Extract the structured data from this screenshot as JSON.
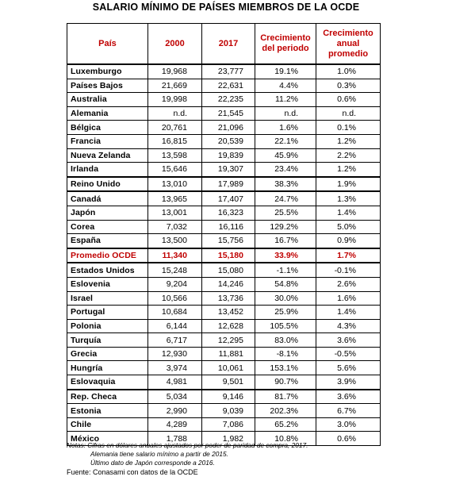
{
  "title": "SALARIO MÍNIMO  DE PAÍSES MIEMBROS DE LA OCDE",
  "colors": {
    "header_text": "#c00000",
    "highlight_text": "#c00000"
  },
  "chart_data": {
    "type": "table",
    "title": "SALARIO MÍNIMO  DE PAÍSES MIEMBROS DE LA OCDE",
    "columns": [
      "País",
      "2000",
      "2017",
      "Crecimiento del periodo",
      "Crecimiento anual promedio"
    ],
    "rows": [
      {
        "pais": "Luxemburgo",
        "y2000": "19,968",
        "y2017": "23,777",
        "crec": "19.1%",
        "anual": "1.0%"
      },
      {
        "pais": "Países Bajos",
        "y2000": "21,669",
        "y2017": "22,631",
        "crec": "4.4%",
        "anual": "0.3%"
      },
      {
        "pais": "Australia",
        "y2000": "19,998",
        "y2017": "22,235",
        "crec": "11.2%",
        "anual": "0.6%"
      },
      {
        "pais": "Alemania",
        "y2000": "n.d.",
        "y2017": "21,545",
        "crec": "n.d.",
        "anual": "n.d."
      },
      {
        "pais": "Bélgica",
        "y2000": "20,761",
        "y2017": "21,096",
        "crec": "1.6%",
        "anual": "0.1%"
      },
      {
        "pais": "Francia",
        "y2000": "16,815",
        "y2017": "20,539",
        "crec": "22.1%",
        "anual": "1.2%"
      },
      {
        "pais": "Nueva Zelanda",
        "y2000": "13,598",
        "y2017": "19,839",
        "crec": "45.9%",
        "anual": "2.2%"
      },
      {
        "pais": "Irlanda",
        "y2000": "15,646",
        "y2017": "19,307",
        "crec": "23.4%",
        "anual": "1.2%"
      },
      {
        "pais": "Reino Unido",
        "y2000": "13,010",
        "y2017": "17,989",
        "crec": "38.3%",
        "anual": "1.9%"
      },
      {
        "pais": "Canadá",
        "y2000": "13,965",
        "y2017": "17,407",
        "crec": "24.7%",
        "anual": "1.3%"
      },
      {
        "pais": "Japón",
        "y2000": "13,001",
        "y2017": "16,323",
        "crec": "25.5%",
        "anual": "1.4%"
      },
      {
        "pais": "Corea",
        "y2000": "7,032",
        "y2017": "16,116",
        "crec": "129.2%",
        "anual": "5.0%"
      },
      {
        "pais": "España",
        "y2000": "13,500",
        "y2017": "15,756",
        "crec": "16.7%",
        "anual": "0.9%"
      },
      {
        "pais": "Promedio OCDE",
        "y2000": "11,340",
        "y2017": "15,180",
        "crec": "33.9%",
        "anual": "1.7%",
        "highlight": true
      },
      {
        "pais": "Estados Unidos",
        "y2000": "15,248",
        "y2017": "15,080",
        "crec": "-1.1%",
        "anual": "-0.1%"
      },
      {
        "pais": "Eslovenia",
        "y2000": "9,204",
        "y2017": "14,246",
        "crec": "54.8%",
        "anual": "2.6%"
      },
      {
        "pais": "Israel",
        "y2000": "10,566",
        "y2017": "13,736",
        "crec": "30.0%",
        "anual": "1.6%"
      },
      {
        "pais": "Portugal",
        "y2000": "10,684",
        "y2017": "13,452",
        "crec": "25.9%",
        "anual": "1.4%"
      },
      {
        "pais": "Polonia",
        "y2000": "6,144",
        "y2017": "12,628",
        "crec": "105.5%",
        "anual": "4.3%"
      },
      {
        "pais": "Turquía",
        "y2000": "6,717",
        "y2017": "12,295",
        "crec": "83.0%",
        "anual": "3.6%"
      },
      {
        "pais": "Grecia",
        "y2000": "12,930",
        "y2017": "11,881",
        "crec": "-8.1%",
        "anual": "-0.5%"
      },
      {
        "pais": "Hungría",
        "y2000": "3,974",
        "y2017": "10,061",
        "crec": "153.1%",
        "anual": "5.6%"
      },
      {
        "pais": "Eslovaquia",
        "y2000": "4,981",
        "y2017": "9,501",
        "crec": "90.7%",
        "anual": "3.9%"
      },
      {
        "pais": "Rep. Checa",
        "y2000": "5,034",
        "y2017": "9,146",
        "crec": "81.7%",
        "anual": "3.6%"
      },
      {
        "pais": "Estonia",
        "y2000": "2,990",
        "y2017": "9,039",
        "crec": "202.3%",
        "anual": "6.7%"
      },
      {
        "pais": "Chile",
        "y2000": "4,289",
        "y2017": "7,086",
        "crec": "65.2%",
        "anual": "3.0%"
      },
      {
        "pais": "México",
        "y2000": "1,788",
        "y2017": "1,982",
        "crec": "10.8%",
        "anual": "0.6%"
      }
    ],
    "thick_borders_after": [
      "Irlanda",
      "Reino Unido",
      "España",
      "Promedio OCDE",
      "Eslovaquia"
    ]
  },
  "notes": [
    "Notas: Cifras en dólares anuales ajustados por poder de paridad de compra, 2017.",
    "Alemania tiene salario mínimo a partir de 2015.",
    "Último dato de Japón corresponde a 2016."
  ],
  "source": "Fuente: Conasami con datos de la OCDE"
}
